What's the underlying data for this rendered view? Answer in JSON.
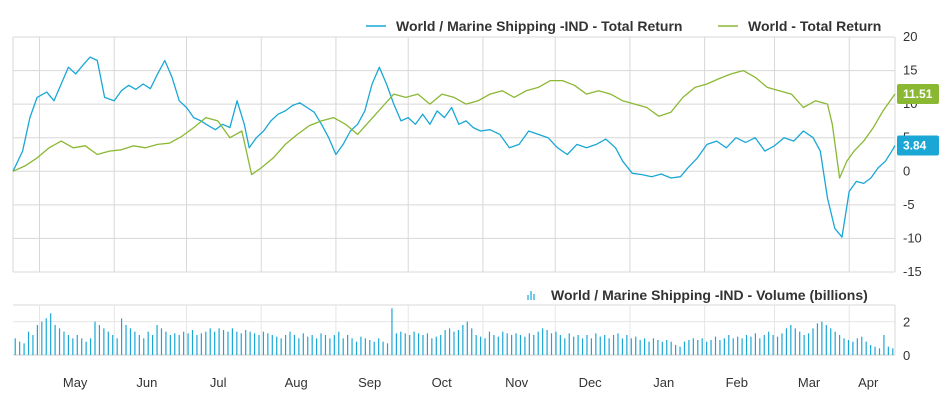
{
  "chart_data": [
    {
      "type": "line",
      "legend_placement": "top-right",
      "grid": true,
      "ylim": [
        -15,
        20
      ],
      "yticks": [
        20,
        15,
        10,
        5,
        0,
        -5,
        -10,
        -15
      ],
      "ytick_labels": [
        "20",
        "15",
        "10",
        "5",
        "0",
        "-5",
        "-10",
        "-15"
      ],
      "x_range": [
        "2023-04-20",
        "2024-04-20"
      ],
      "months": [
        {
          "label": "May",
          "date": "2023-05-01"
        },
        {
          "label": "Jun",
          "date": "2023-06-01"
        },
        {
          "label": "Jul",
          "date": "2023-07-01"
        },
        {
          "label": "Aug",
          "date": "2023-08-01"
        },
        {
          "label": "Sep",
          "date": "2023-09-01"
        },
        {
          "label": "Oct",
          "date": "2023-10-01"
        },
        {
          "label": "Nov",
          "date": "2023-11-01"
        },
        {
          "label": "Dec",
          "date": "2023-12-01"
        },
        {
          "label": "Jan",
          "date": "2024-01-01"
        },
        {
          "label": "Feb",
          "date": "2024-02-01"
        },
        {
          "label": "Mar",
          "date": "2024-03-01"
        },
        {
          "label": "Apr",
          "date": "2024-04-01"
        }
      ],
      "series": [
        {
          "name": "World / Marine Shipping -IND - Total Return",
          "color": "#1aa7d6",
          "last_value_label": "3.84",
          "points": [
            [
              "2023-04-20",
              0
            ],
            [
              "2023-04-24",
              3
            ],
            [
              "2023-04-27",
              8
            ],
            [
              "2023-04-30",
              11
            ],
            [
              "2023-05-04",
              11.8
            ],
            [
              "2023-05-07",
              10.5
            ],
            [
              "2023-05-10",
              13
            ],
            [
              "2023-05-13",
              15.5
            ],
            [
              "2023-05-16",
              14.5
            ],
            [
              "2023-05-19",
              15.8
            ],
            [
              "2023-05-22",
              17
            ],
            [
              "2023-05-25",
              16.5
            ],
            [
              "2023-05-28",
              11
            ],
            [
              "2023-06-01",
              10.5
            ],
            [
              "2023-06-04",
              12
            ],
            [
              "2023-06-07",
              12.8
            ],
            [
              "2023-06-10",
              12.2
            ],
            [
              "2023-06-13",
              13
            ],
            [
              "2023-06-16",
              12.3
            ],
            [
              "2023-06-19",
              14.5
            ],
            [
              "2023-06-22",
              16.5
            ],
            [
              "2023-06-25",
              14
            ],
            [
              "2023-06-28",
              10.5
            ],
            [
              "2023-07-01",
              9.5
            ],
            [
              "2023-07-04",
              8
            ],
            [
              "2023-07-07",
              7.5
            ],
            [
              "2023-07-10",
              6.8
            ],
            [
              "2023-07-13",
              6.2
            ],
            [
              "2023-07-16",
              7
            ],
            [
              "2023-07-19",
              6.5
            ],
            [
              "2023-07-22",
              10.5
            ],
            [
              "2023-07-25",
              7
            ],
            [
              "2023-07-27",
              3.5
            ],
            [
              "2023-07-30",
              5
            ],
            [
              "2023-08-02",
              6
            ],
            [
              "2023-08-05",
              7.5
            ],
            [
              "2023-08-08",
              8.5
            ],
            [
              "2023-08-11",
              9
            ],
            [
              "2023-08-14",
              9.8
            ],
            [
              "2023-08-17",
              10.2
            ],
            [
              "2023-08-20",
              9.5
            ],
            [
              "2023-08-23",
              8.8
            ],
            [
              "2023-08-26",
              7
            ],
            [
              "2023-08-29",
              5
            ],
            [
              "2023-09-01",
              2.5
            ],
            [
              "2023-09-04",
              4
            ],
            [
              "2023-09-07",
              6
            ],
            [
              "2023-09-10",
              7
            ],
            [
              "2023-09-13",
              9
            ],
            [
              "2023-09-16",
              13
            ],
            [
              "2023-09-19",
              15.5
            ],
            [
              "2023-09-22",
              13
            ],
            [
              "2023-09-25",
              10
            ],
            [
              "2023-09-28",
              7.5
            ],
            [
              "2023-10-01",
              8
            ],
            [
              "2023-10-04",
              7
            ],
            [
              "2023-10-07",
              8.5
            ],
            [
              "2023-10-10",
              7
            ],
            [
              "2023-10-13",
              9
            ],
            [
              "2023-10-16",
              8
            ],
            [
              "2023-10-19",
              9.5
            ],
            [
              "2023-10-22",
              7
            ],
            [
              "2023-10-25",
              7.5
            ],
            [
              "2023-10-28",
              6.5
            ],
            [
              "2023-10-31",
              6
            ],
            [
              "2023-11-04",
              6.2
            ],
            [
              "2023-11-08",
              5.5
            ],
            [
              "2023-11-12",
              3.5
            ],
            [
              "2023-11-16",
              4
            ],
            [
              "2023-11-20",
              6
            ],
            [
              "2023-11-24",
              5.5
            ],
            [
              "2023-11-28",
              5
            ],
            [
              "2023-12-02",
              3.5
            ],
            [
              "2023-12-06",
              2.5
            ],
            [
              "2023-12-10",
              4
            ],
            [
              "2023-12-14",
              3.5
            ],
            [
              "2023-12-18",
              4
            ],
            [
              "2023-12-22",
              4.8
            ],
            [
              "2023-12-26",
              3.5
            ],
            [
              "2023-12-29",
              1.5
            ],
            [
              "2024-01-02",
              -0.3
            ],
            [
              "2024-01-06",
              -0.5
            ],
            [
              "2024-01-10",
              -0.8
            ],
            [
              "2024-01-14",
              -0.4
            ],
            [
              "2024-01-18",
              -1
            ],
            [
              "2024-01-22",
              -0.8
            ],
            [
              "2024-01-25",
              0.5
            ],
            [
              "2024-01-29",
              2
            ],
            [
              "2024-02-02",
              4
            ],
            [
              "2024-02-06",
              4.5
            ],
            [
              "2024-02-10",
              3.5
            ],
            [
              "2024-02-14",
              5
            ],
            [
              "2024-02-18",
              4.3
            ],
            [
              "2024-02-22",
              5
            ],
            [
              "2024-02-26",
              3
            ],
            [
              "2024-03-01",
              3.8
            ],
            [
              "2024-03-05",
              5
            ],
            [
              "2024-03-09",
              4.5
            ],
            [
              "2024-03-13",
              6
            ],
            [
              "2024-03-17",
              5
            ],
            [
              "2024-03-20",
              3
            ],
            [
              "2024-03-23",
              -4
            ],
            [
              "2024-03-26",
              -8.5
            ],
            [
              "2024-03-29",
              -9.8
            ],
            [
              "2024-04-01",
              -3
            ],
            [
              "2024-04-04",
              -1.5
            ],
            [
              "2024-04-07",
              -1.8
            ],
            [
              "2024-04-10",
              -1
            ],
            [
              "2024-04-13",
              0.5
            ],
            [
              "2024-04-16",
              1.5
            ],
            [
              "2024-04-19",
              3.2
            ],
            [
              "2024-04-20",
              3.84
            ]
          ]
        },
        {
          "name": "World - Total Return",
          "color": "#8ab833",
          "last_value_label": "11.51",
          "points": [
            [
              "2023-04-20",
              0
            ],
            [
              "2023-04-25",
              0.8
            ],
            [
              "2023-04-30",
              2
            ],
            [
              "2023-05-05",
              3.5
            ],
            [
              "2023-05-10",
              4.5
            ],
            [
              "2023-05-15",
              3.5
            ],
            [
              "2023-05-20",
              3.8
            ],
            [
              "2023-05-25",
              2.5
            ],
            [
              "2023-05-30",
              3
            ],
            [
              "2023-06-04",
              3.2
            ],
            [
              "2023-06-09",
              3.8
            ],
            [
              "2023-06-14",
              3.5
            ],
            [
              "2023-06-19",
              4
            ],
            [
              "2023-06-24",
              4.2
            ],
            [
              "2023-06-29",
              5.2
            ],
            [
              "2023-07-04",
              6.5
            ],
            [
              "2023-07-09",
              8
            ],
            [
              "2023-07-14",
              7.5
            ],
            [
              "2023-07-19",
              5
            ],
            [
              "2023-07-24",
              6
            ],
            [
              "2023-07-28",
              -0.5
            ],
            [
              "2023-08-01",
              0.5
            ],
            [
              "2023-08-06",
              2
            ],
            [
              "2023-08-11",
              4
            ],
            [
              "2023-08-16",
              5.5
            ],
            [
              "2023-08-21",
              6.8
            ],
            [
              "2023-08-26",
              7.5
            ],
            [
              "2023-08-31",
              8
            ],
            [
              "2023-09-05",
              7
            ],
            [
              "2023-09-10",
              5.5
            ],
            [
              "2023-09-15",
              7.5
            ],
            [
              "2023-09-20",
              9.5
            ],
            [
              "2023-09-25",
              11.5
            ],
            [
              "2023-09-30",
              11
            ],
            [
              "2023-10-05",
              11.5
            ],
            [
              "2023-10-10",
              10
            ],
            [
              "2023-10-15",
              11.5
            ],
            [
              "2023-10-20",
              11
            ],
            [
              "2023-10-25",
              10
            ],
            [
              "2023-10-30",
              10.5
            ],
            [
              "2023-11-04",
              11.5
            ],
            [
              "2023-11-09",
              12
            ],
            [
              "2023-11-14",
              11
            ],
            [
              "2023-11-19",
              12
            ],
            [
              "2023-11-24",
              12.5
            ],
            [
              "2023-11-29",
              13.5
            ],
            [
              "2023-12-04",
              13.5
            ],
            [
              "2023-12-09",
              12.8
            ],
            [
              "2023-12-14",
              11.5
            ],
            [
              "2023-12-19",
              12
            ],
            [
              "2023-12-24",
              11.5
            ],
            [
              "2023-12-29",
              10.5
            ],
            [
              "2024-01-03",
              10
            ],
            [
              "2024-01-08",
              9.5
            ],
            [
              "2024-01-13",
              8.2
            ],
            [
              "2024-01-18",
              8.8
            ],
            [
              "2024-01-23",
              11
            ],
            [
              "2024-01-28",
              12.5
            ],
            [
              "2024-02-02",
              13
            ],
            [
              "2024-02-07",
              13.8
            ],
            [
              "2024-02-12",
              14.5
            ],
            [
              "2024-02-17",
              15
            ],
            [
              "2024-02-22",
              14
            ],
            [
              "2024-02-27",
              12.5
            ],
            [
              "2024-03-03",
              12
            ],
            [
              "2024-03-08",
              11.5
            ],
            [
              "2024-03-13",
              9.5
            ],
            [
              "2024-03-18",
              10.5
            ],
            [
              "2024-03-23",
              10
            ],
            [
              "2024-03-25",
              7
            ],
            [
              "2024-03-28",
              -1
            ],
            [
              "2024-03-31",
              1.5
            ],
            [
              "2024-04-03",
              3
            ],
            [
              "2024-04-07",
              4.5
            ],
            [
              "2024-04-11",
              6.5
            ],
            [
              "2024-04-15",
              9
            ],
            [
              "2024-04-18",
              10.5
            ],
            [
              "2024-04-20",
              11.51
            ]
          ]
        }
      ]
    },
    {
      "type": "bar",
      "legend_placement": "top-right",
      "grid": true,
      "ylim": [
        0,
        3
      ],
      "yticks": [
        2,
        0
      ],
      "ytick_labels": [
        "2",
        "0"
      ],
      "x_range": [
        "2023-04-20",
        "2024-04-20"
      ],
      "series": [
        {
          "name": "World / Marine Shipping -IND - Volume (billions)",
          "color": "#1aa7d6",
          "values": [
            1.0,
            0.8,
            0.7,
            1.4,
            1.2,
            1.8,
            2.0,
            2.2,
            2.5,
            1.8,
            1.6,
            1.4,
            1.2,
            1.0,
            1.2,
            1.0,
            0.8,
            1.0,
            2.0,
            1.8,
            1.6,
            1.4,
            1.2,
            1.0,
            2.2,
            1.8,
            1.6,
            1.4,
            1.2,
            1.0,
            1.4,
            1.2,
            1.8,
            1.6,
            1.4,
            1.2,
            1.3,
            1.2,
            1.4,
            1.3,
            1.5,
            1.2,
            1.3,
            1.4,
            1.6,
            1.4,
            1.6,
            1.5,
            1.4,
            1.6,
            1.4,
            1.3,
            1.5,
            1.4,
            1.3,
            1.2,
            1.4,
            1.3,
            1.2,
            1.1,
            1.0,
            1.2,
            1.4,
            1.2,
            1.0,
            1.3,
            1.1,
            1.2,
            1.0,
            1.3,
            1.2,
            1.0,
            1.2,
            1.4,
            1.0,
            1.2,
            1.0,
            0.8,
            1.1,
            1.0,
            0.9,
            0.8,
            1.0,
            0.8,
            0.7,
            2.8,
            1.3,
            1.4,
            1.3,
            1.2,
            1.4,
            1.3,
            1.2,
            1.3,
            1.0,
            1.1,
            1.2,
            1.5,
            1.6,
            1.4,
            1.5,
            1.8,
            2.0,
            1.6,
            1.2,
            1.1,
            1.0,
            1.4,
            1.2,
            1.1,
            1.4,
            1.3,
            1.2,
            1.3,
            1.2,
            1.1,
            1.3,
            1.2,
            1.4,
            1.6,
            1.5,
            1.3,
            1.4,
            1.2,
            1.0,
            1.3,
            1.1,
            1.2,
            1.0,
            1.2,
            1.0,
            1.3,
            1.1,
            1.2,
            1.0,
            1.2,
            1.3,
            1.0,
            1.2,
            1.0,
            1.1,
            0.9,
            1.0,
            0.8,
            1.0,
            0.9,
            0.8,
            0.9,
            0.8,
            0.6,
            0.5,
            0.8,
            0.9,
            1.0,
            0.9,
            1.0,
            0.8,
            0.9,
            1.1,
            0.9,
            1.0,
            1.2,
            1.0,
            1.1,
            1.0,
            1.2,
            1.1,
            1.3,
            1.0,
            1.2,
            1.4,
            1.2,
            1.1,
            1.3,
            1.6,
            1.8,
            1.6,
            1.4,
            1.2,
            1.3,
            1.6,
            1.9,
            2.0,
            1.8,
            1.6,
            1.4,
            1.2,
            1.0,
            0.9,
            0.8,
            1.0,
            1.1,
            0.8,
            0.6,
            0.5,
            0.4,
            1.2,
            0.5,
            0.4
          ]
        }
      ]
    }
  ]
}
